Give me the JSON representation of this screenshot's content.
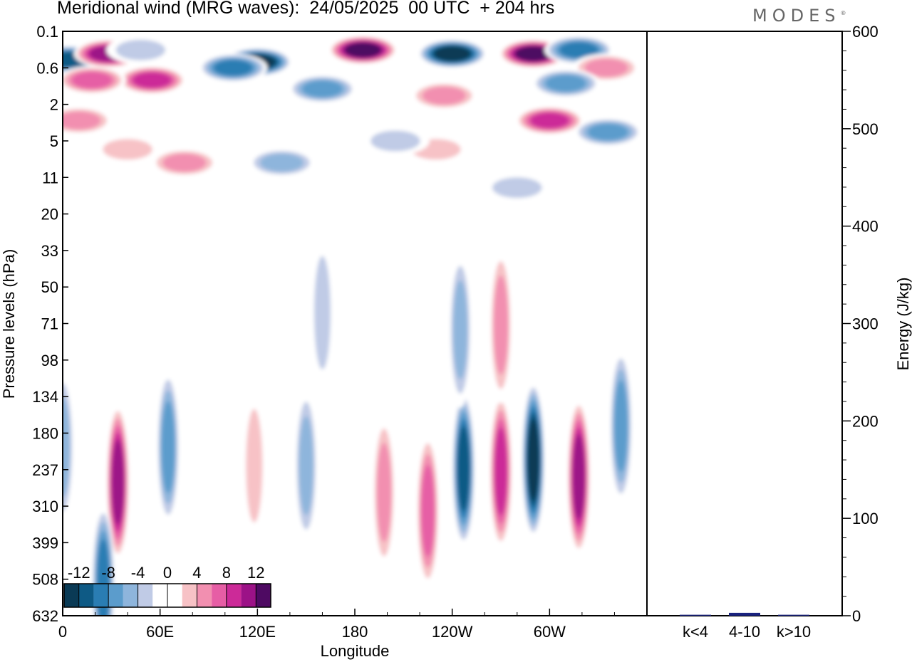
{
  "title": "Meridional wind (MRG waves):  24/05/2025  00 UTC  + 204 hrs",
  "brand": "MODES",
  "chart_data": [
    {
      "type": "heatmap",
      "variable": "Meridional wind (MRG waves)",
      "xlabel": "Longitude",
      "ylabel": "Pressure levels (hPa)",
      "x_ticks": [
        "0",
        "60E",
        "120E",
        "180",
        "120W",
        "60W"
      ],
      "y_ticks": [
        "0.1",
        "0.6",
        "2",
        "5",
        "11",
        "20",
        "33",
        "50",
        "71",
        "98",
        "134",
        "180",
        "237",
        "310",
        "399",
        "508",
        "632"
      ],
      "colorbar": {
        "tick_labels": [
          "-12",
          "-8",
          "-4",
          "0",
          "4",
          "8",
          "12"
        ],
        "bins": [
          {
            "v": -14,
            "color": "#0a3a55"
          },
          {
            "v": -12,
            "color": "#0e5a85"
          },
          {
            "v": -10,
            "color": "#2a7db3"
          },
          {
            "v": -8,
            "color": "#5b9ccc"
          },
          {
            "v": -6,
            "color": "#8eb5dc"
          },
          {
            "v": -4,
            "color": "#c0cbe6"
          },
          {
            "v": -2,
            "color": "#ffffff"
          },
          {
            "v": 2,
            "color": "#ffffff"
          },
          {
            "v": 4,
            "color": "#f7c2c6"
          },
          {
            "v": 6,
            "color": "#f28fb0"
          },
          {
            "v": 8,
            "color": "#e65ea5"
          },
          {
            "v": 10,
            "color": "#cc2a98"
          },
          {
            "v": 12,
            "color": "#9c1287"
          },
          {
            "v": 14,
            "color": "#4e0a62"
          }
        ]
      },
      "features": [
        {
          "lon": 4,
          "lev": 0.4,
          "v": -12
        },
        {
          "lon": 28,
          "lev": 0.3,
          "v": 11
        },
        {
          "lon": 55,
          "lev": 0.9,
          "v": 9
        },
        {
          "lon": 18,
          "lev": 0.9,
          "v": 7
        },
        {
          "lon": 48,
          "lev": 0.25,
          "v": -4
        },
        {
          "lon": 10,
          "lev": 3,
          "v": 5
        },
        {
          "lon": 40,
          "lev": 6,
          "v": 4
        },
        {
          "lon": 75,
          "lev": 8,
          "v": 5
        },
        {
          "lon": 120,
          "lev": 0.45,
          "v": -14
        },
        {
          "lon": 105,
          "lev": 0.6,
          "v": -9
        },
        {
          "lon": 185,
          "lev": 0.25,
          "v": 13
        },
        {
          "lon": 160,
          "lev": 1.2,
          "v": -7
        },
        {
          "lon": 240,
          "lev": 0.3,
          "v": -13
        },
        {
          "lon": 290,
          "lev": 0.3,
          "v": 13
        },
        {
          "lon": 318,
          "lev": 0.25,
          "v": -9
        },
        {
          "lon": 335,
          "lev": 0.6,
          "v": 6
        },
        {
          "lon": 310,
          "lev": 1.0,
          "v": -7
        },
        {
          "lon": 300,
          "lev": 3,
          "v": 10
        },
        {
          "lon": 336,
          "lev": 4,
          "v": -8
        },
        {
          "lon": 235,
          "lev": 1.5,
          "v": 5
        },
        {
          "lon": 230,
          "lev": 6,
          "v": 4
        },
        {
          "lon": 205,
          "lev": 5,
          "v": -4
        },
        {
          "lon": 135,
          "lev": 8,
          "v": -5
        },
        {
          "lon": 280,
          "lev": 13,
          "v": -4
        },
        {
          "lon": 0,
          "lev": 200,
          "v": -6
        },
        {
          "lon": 34,
          "lev": 260,
          "v": 12
        },
        {
          "lon": 65,
          "lev": 200,
          "v": -8
        },
        {
          "lon": 118,
          "lev": 230,
          "v": 4
        },
        {
          "lon": 150,
          "lev": 230,
          "v": -5
        },
        {
          "lon": 198,
          "lev": 280,
          "v": 5
        },
        {
          "lon": 225,
          "lev": 320,
          "v": 7
        },
        {
          "lon": 247,
          "lev": 235,
          "v": -11
        },
        {
          "lon": 270,
          "lev": 240,
          "v": 10
        },
        {
          "lon": 290,
          "lev": 220,
          "v": -13
        },
        {
          "lon": 318,
          "lev": 250,
          "v": 11
        },
        {
          "lon": 344,
          "lev": 170,
          "v": -7
        },
        {
          "lon": 270,
          "lev": 72,
          "v": 5
        },
        {
          "lon": 160,
          "lev": 64,
          "v": -4
        },
        {
          "lon": 245,
          "lev": 75,
          "v": -6
        },
        {
          "lon": 25,
          "lev": 520,
          "v": -9
        }
      ]
    },
    {
      "type": "bar",
      "categories": [
        "k<4",
        "4-10",
        "k>10"
      ],
      "values": [
        1,
        3,
        1
      ],
      "ylabel": "Energy (J/kg)",
      "ylim": [
        0,
        600
      ],
      "y_ticks": [
        "0",
        "100",
        "200",
        "300",
        "400",
        "500",
        "600"
      ],
      "bar_color": "#1a237e"
    }
  ]
}
